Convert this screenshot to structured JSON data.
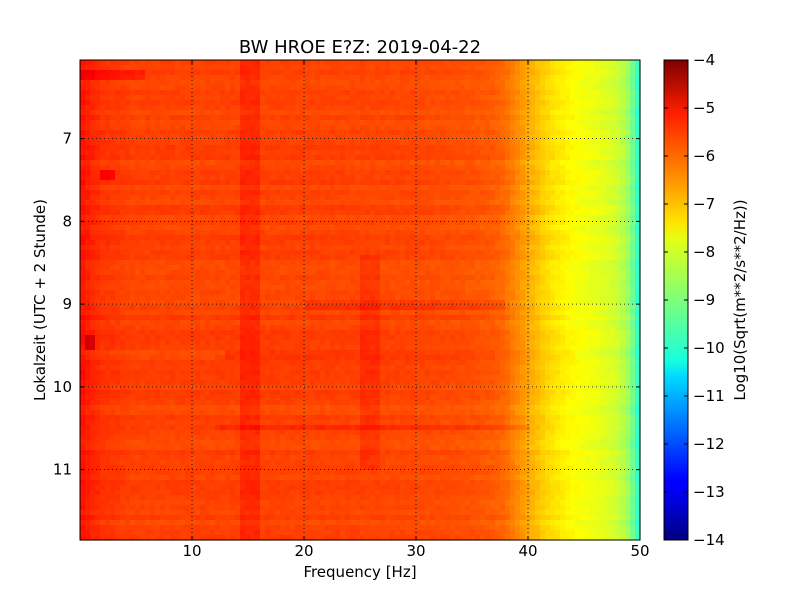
{
  "chart_data": {
    "type": "heatmap",
    "title": "BW HROE E?Z: 2019-04-22",
    "xlabel": "Frequency [Hz]",
    "ylabel": "Lokalzeit (UTC + 2 Stunde)",
    "xlim": [
      0,
      50
    ],
    "ylim": [
      11.85,
      6.05
    ],
    "y_inverted": true,
    "x_ticks": [
      10,
      20,
      30,
      40,
      50
    ],
    "x_tick_labels": [
      "10",
      "20",
      "30",
      "40",
      "50"
    ],
    "y_ticks": [
      7,
      8,
      9,
      10,
      11
    ],
    "y_tick_labels": [
      "7",
      "8",
      "9",
      "10",
      "11"
    ],
    "grid": true,
    "grid_style": "dotted",
    "colormap": "jet",
    "colorbar": {
      "label": "Log10(Sqrt(m**2/s**2/Hz))",
      "range": [
        -14,
        -4
      ],
      "ticks": [
        -4,
        -5,
        -6,
        -7,
        -8,
        -9,
        -10,
        -11,
        -12,
        -13,
        -14
      ],
      "tick_labels": [
        "−4",
        "−5",
        "−6",
        "−7",
        "−8",
        "−9",
        "−10",
        "−11",
        "−12",
        "−13",
        "−14"
      ]
    },
    "frequency_profile": {
      "frequency_hz": [
        0,
        0.5,
        1,
        2,
        5,
        10,
        20,
        30,
        35,
        37,
        38,
        39,
        40,
        41,
        42,
        43,
        44,
        45,
        46,
        47,
        48,
        49,
        50
      ],
      "log_amplitude": [
        -5.4,
        -5.5,
        -5.6,
        -5.75,
        -5.9,
        -5.9,
        -5.9,
        -5.95,
        -6.05,
        -6.15,
        -6.3,
        -6.6,
        -6.9,
        -7.2,
        -7.45,
        -7.6,
        -7.75,
        -7.85,
        -7.95,
        -8.05,
        -8.25,
        -8.7,
        -10.0
      ]
    },
    "features": [
      {
        "type": "band",
        "frequency_hz": 15,
        "time_range": [
          6.05,
          11.85
        ],
        "delta": 0.25
      },
      {
        "type": "band",
        "frequency_hz": 25.7,
        "time_range": [
          8.4,
          11.0
        ],
        "delta": 0.2
      },
      {
        "type": "spot",
        "frequency_hz": 0.9,
        "time": 9.47,
        "delta": 0.7
      },
      {
        "type": "spot",
        "frequency_hz": 2.6,
        "time": 7.45,
        "delta": 0.5
      },
      {
        "type": "band",
        "time": 9.0,
        "frequency_range": [
          20,
          38
        ],
        "delta": 0.2
      },
      {
        "type": "band",
        "time": 9.6,
        "frequency_range": [
          13,
          44
        ],
        "delta": 0.2
      },
      {
        "type": "band",
        "time": 10.5,
        "frequency_range": [
          12,
          40
        ],
        "delta": 0.25
      },
      {
        "type": "band",
        "time": 6.22,
        "frequency_range": [
          0,
          6
        ],
        "delta": 0.35
      }
    ]
  }
}
